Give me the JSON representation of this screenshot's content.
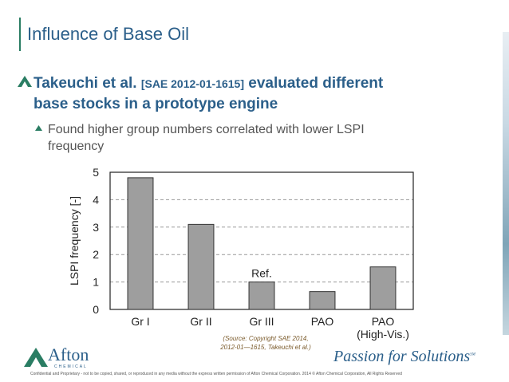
{
  "title": "Influence of Base Oil",
  "bullet1": {
    "lead": "Takeuchi et al.",
    "ref": "[SAE 2012-01-1615]",
    "rest": "evaluated different",
    "line2": "base stocks in a prototype engine"
  },
  "bullet2": {
    "line1": "Found higher group numbers correlated with lower LSPI",
    "line2": "frequency"
  },
  "chart_data": {
    "type": "bar",
    "categories": [
      "Gr I",
      "Gr II",
      "Gr III",
      "PAO",
      "PAO (High-Vis.)"
    ],
    "category_lines": [
      [
        "Gr I"
      ],
      [
        "Gr II"
      ],
      [
        "Gr III"
      ],
      [
        "PAO"
      ],
      [
        "PAO",
        "(High-Vis.)"
      ]
    ],
    "values": [
      4.8,
      3.1,
      1.0,
      0.65,
      1.55
    ],
    "annotations": [
      {
        "category": "Gr III",
        "text": "Ref."
      }
    ],
    "ylabel": "LSPI frequency [-]",
    "xlabel": "",
    "ylim": [
      0,
      5
    ],
    "yticks": [
      0,
      1,
      2,
      3,
      4,
      5
    ],
    "grid": true,
    "bar_color": "#9e9e9e"
  },
  "source": {
    "line1": "(Source: Copyright SAE 2014,",
    "line2": "2012-01—1615, Takeuchi et al.)"
  },
  "logo": {
    "name": "Afton",
    "sub": "CHEMICAL"
  },
  "tagline": "Passion for Solutions",
  "tagline_mark": "SM",
  "footer": "Confidential and Proprietary - not to be copied, shared, or reproduced in any media without the express written permission of Afton Chemical Corporation.  2014 © Afton Chemical Corporation, All Rights Reserved",
  "colors": {
    "accent": "#2b5f8a",
    "bullet_green": "#2a7d63"
  }
}
